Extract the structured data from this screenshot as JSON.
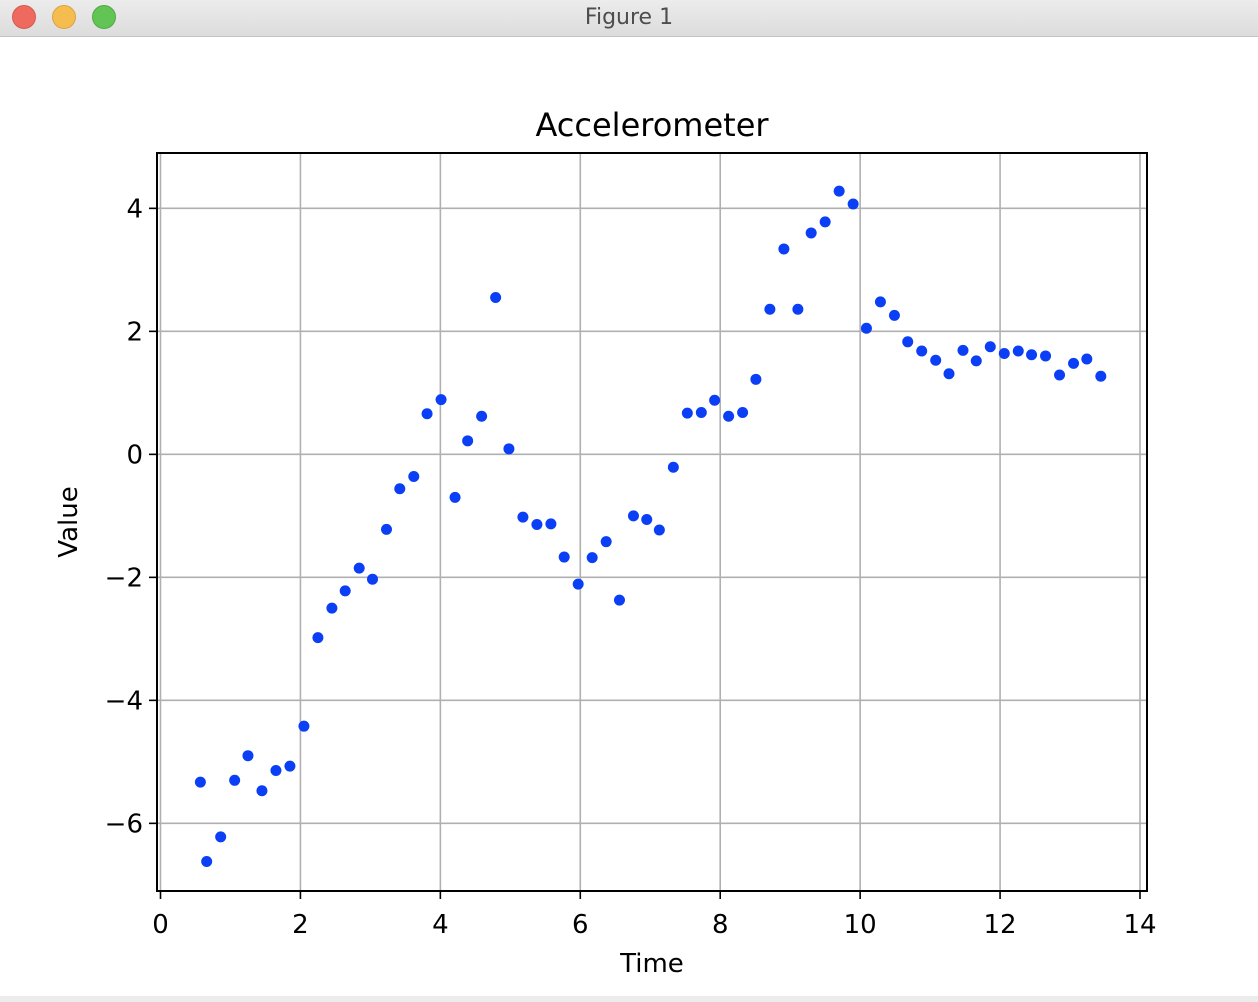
{
  "window": {
    "title": "Figure 1"
  },
  "chart_data": {
    "type": "scatter",
    "title": "Accelerometer",
    "xlabel": "Time",
    "ylabel": "Value",
    "xlim": [
      -0.05,
      14.1
    ],
    "ylim": [
      -7.1,
      4.9
    ],
    "xticks": [
      0,
      2,
      4,
      6,
      8,
      10,
      12,
      14
    ],
    "yticks": [
      -6,
      -4,
      -2,
      0,
      2,
      4
    ],
    "xtick_labels": [
      "0",
      "2",
      "4",
      "6",
      "8",
      "10",
      "12",
      "14"
    ],
    "ytick_labels": [
      "−6",
      "−4",
      "−2",
      "0",
      "2",
      "4"
    ],
    "grid": true,
    "marker_color": "#0a3ff5",
    "grid_color": "#b0b0b0",
    "series": [
      {
        "x": [
          0.57,
          0.66,
          0.86,
          1.06,
          1.25,
          1.45,
          1.65,
          1.85,
          2.05,
          2.25,
          2.45,
          2.64,
          2.84,
          3.03,
          3.23,
          3.42,
          3.62,
          3.81,
          4.01,
          4.21,
          4.39,
          4.59,
          4.79,
          4.98,
          5.18,
          5.38,
          5.58,
          5.77,
          5.97,
          6.17,
          6.37,
          6.56,
          6.76,
          6.95,
          7.13,
          7.33,
          7.53,
          7.73,
          7.92,
          8.12,
          8.32,
          8.51,
          8.71,
          8.91,
          9.11,
          9.3,
          9.5,
          9.7,
          9.9,
          10.09,
          10.29,
          10.49,
          10.68,
          10.88,
          11.08,
          11.27,
          11.47,
          11.66,
          11.86,
          12.06,
          12.26,
          12.45,
          12.65,
          12.85,
          13.05,
          13.24,
          13.44
        ],
        "y": [
          -5.33,
          -6.62,
          -6.22,
          -5.3,
          -4.9,
          -5.47,
          -5.14,
          -5.07,
          -4.42,
          -2.98,
          -2.5,
          -2.22,
          -1.85,
          -2.03,
          -1.22,
          -0.56,
          -0.36,
          0.66,
          0.89,
          -0.7,
          0.22,
          0.62,
          2.55,
          0.09,
          -1.02,
          -1.14,
          -1.13,
          -1.67,
          -2.11,
          -1.68,
          -1.42,
          -2.37,
          -1.0,
          -1.06,
          -1.23,
          -0.21,
          0.67,
          0.68,
          0.88,
          0.62,
          0.68,
          1.22,
          2.36,
          3.34,
          2.36,
          3.6,
          3.78,
          4.28,
          4.07,
          2.05,
          2.48,
          2.26,
          1.83,
          1.68,
          1.53,
          1.31,
          1.69,
          1.52,
          1.75,
          1.64,
          1.68,
          1.62,
          1.6,
          1.29,
          1.48,
          1.55,
          1.27
        ]
      }
    ]
  }
}
